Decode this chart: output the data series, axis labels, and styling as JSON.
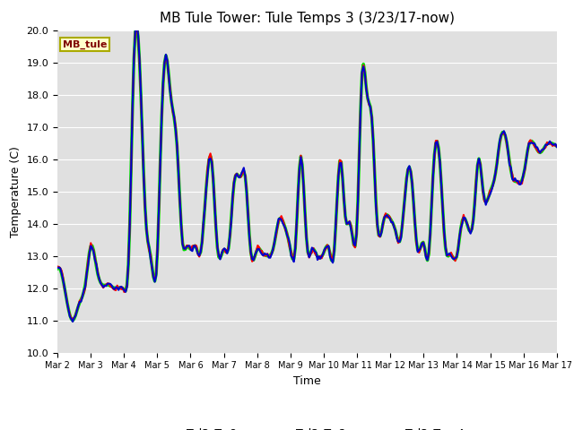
{
  "title": "MB Tule Tower: Tule Temps 3 (3/23/17-now)",
  "xlabel": "Time",
  "ylabel": "Temperature (C)",
  "ylim": [
    10.0,
    20.0
  ],
  "yticks": [
    10.0,
    11.0,
    12.0,
    13.0,
    14.0,
    15.0,
    16.0,
    17.0,
    18.0,
    19.0,
    20.0
  ],
  "xtick_labels": [
    "Mar 2",
    "Mar 3",
    "Mar 4",
    "Mar 5",
    "Mar 6",
    "Mar 7",
    "Mar 8",
    "Mar 9",
    "Mar 10",
    "Mar 11",
    "Mar 12",
    "Mar 13",
    "Mar 14",
    "Mar 15",
    "Mar 16",
    "Mar 17"
  ],
  "legend_label_box": "MB_tule",
  "legend_box_color": "#ffffcc",
  "legend_box_text_color": "#800000",
  "bg_color": "#e0e0e0",
  "series": {
    "Tul3_Ts-8": {
      "color": "#ff0000",
      "zorder": 3,
      "lw": 1.5
    },
    "Tul3_Ts-2": {
      "color": "#0000cc",
      "zorder": 4,
      "lw": 1.5
    },
    "Tul3_Tw+4": {
      "color": "#00dd00",
      "zorder": 2,
      "lw": 2.5
    }
  },
  "title_fontsize": 11,
  "axis_label_fontsize": 9,
  "tick_fontsize": 8,
  "num_days": 15,
  "key_t": [
    0,
    0.25,
    0.45,
    0.65,
    0.85,
    1.0,
    1.2,
    1.5,
    1.75,
    2.0,
    2.15,
    2.3,
    2.5,
    2.65,
    2.8,
    3.0,
    3.1,
    3.25,
    3.4,
    3.6,
    3.75,
    3.9,
    4.0,
    4.15,
    4.3,
    4.5,
    4.65,
    4.8,
    5.0,
    5.15,
    5.3,
    5.5,
    5.65,
    5.8,
    6.0,
    6.15,
    6.3,
    6.5,
    6.65,
    6.8,
    7.0,
    7.15,
    7.3,
    7.5,
    7.65,
    7.8,
    8.0,
    8.15,
    8.3,
    8.5,
    8.65,
    8.8,
    9.0,
    9.15,
    9.3,
    9.45,
    9.6,
    9.8,
    10.0,
    10.15,
    10.3,
    10.5,
    10.65,
    10.8,
    11.0,
    11.15,
    11.3,
    11.5,
    11.65,
    11.8,
    12.0,
    12.15,
    12.3,
    12.5,
    12.65,
    12.8,
    13.0,
    13.15,
    13.3,
    13.5,
    13.65,
    13.8,
    14.0,
    14.15,
    14.3,
    14.5,
    14.65,
    14.8,
    15.0
  ],
  "key_v": [
    12.6,
    11.8,
    11.0,
    11.5,
    12.2,
    13.3,
    12.5,
    12.1,
    12.0,
    11.95,
    13.2,
    19.15,
    18.2,
    14.2,
    13.0,
    13.0,
    16.3,
    19.2,
    18.0,
    16.3,
    13.5,
    13.3,
    13.2,
    13.3,
    13.1,
    15.5,
    15.8,
    13.3,
    13.2,
    13.3,
    15.2,
    15.45,
    15.4,
    13.2,
    13.2,
    13.1,
    13.0,
    13.3,
    14.1,
    14.0,
    13.2,
    13.3,
    16.05,
    13.3,
    13.2,
    13.0,
    13.1,
    13.25,
    13.0,
    16.0,
    14.2,
    14.0,
    14.0,
    18.65,
    18.0,
    17.2,
    14.1,
    14.1,
    14.15,
    13.8,
    13.5,
    15.5,
    15.3,
    13.3,
    13.4,
    13.0,
    15.8,
    15.75,
    13.3,
    13.05,
    13.0,
    14.05,
    14.0,
    14.2,
    16.0,
    14.9,
    15.0,
    15.5,
    16.6,
    16.5,
    15.5,
    15.3,
    15.5,
    16.4,
    16.5,
    16.2,
    16.4,
    16.5,
    16.4
  ]
}
